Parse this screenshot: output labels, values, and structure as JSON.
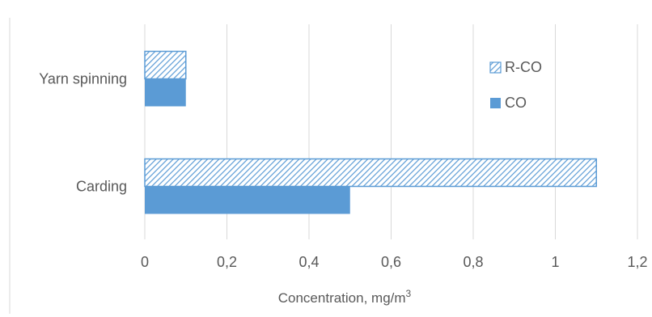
{
  "chart_data": {
    "type": "bar",
    "orientation": "horizontal",
    "categories": [
      "Yarn spinning",
      "Carding"
    ],
    "series": [
      {
        "name": "R-CO",
        "values": [
          0.1,
          1.1
        ],
        "color": "#5B9BD5",
        "fill": "hatched"
      },
      {
        "name": "CO",
        "values": [
          0.1,
          0.5
        ],
        "color": "#5B9BD5",
        "fill": "solid"
      }
    ],
    "xlabel": "Concentration, mg/m",
    "xlabel_superscript": "3",
    "xlim": [
      0,
      1.2
    ],
    "xticks": [
      "0",
      "0,2",
      "0,4",
      "0,6",
      "0,8",
      "1",
      "1,2"
    ],
    "grid": "vertical",
    "legend": "upper-right, inside plot"
  }
}
